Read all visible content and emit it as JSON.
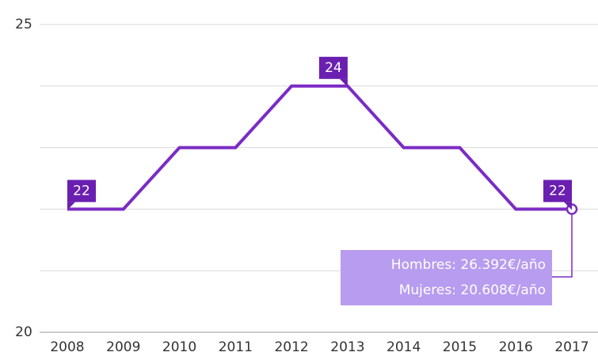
{
  "chart_data": {
    "type": "line",
    "categories": [
      "2008",
      "2009",
      "2010",
      "2011",
      "2012",
      "2013",
      "2014",
      "2015",
      "2016",
      "2017"
    ],
    "series": [
      {
        "color": "#7b2cc4",
        "values": [
          22,
          22,
          23,
          23,
          24,
          24,
          23,
          23,
          22,
          22
        ]
      }
    ],
    "ylim": [
      20,
      25
    ],
    "yticks": [
      20,
      25
    ],
    "minor_yticks": [
      21,
      22,
      23,
      24
    ],
    "grid": true,
    "labeled_points": [
      0,
      5,
      9
    ],
    "annotation": [
      "Hombres: 26.392€/año",
      "Mujeres: 20.608€/año"
    ]
  }
}
